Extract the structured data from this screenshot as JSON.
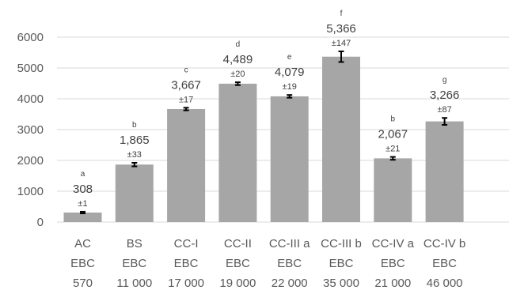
{
  "chart_data": {
    "type": "bar",
    "categories": [
      [
        "AC",
        "EBC",
        "570"
      ],
      [
        "BS",
        "EBC",
        "11 000"
      ],
      [
        "CC-I",
        "EBC",
        "17 000"
      ],
      [
        "CC-II",
        "EBC",
        "19 000"
      ],
      [
        "CC-III a",
        "EBC",
        "22 000"
      ],
      [
        "CC-III b",
        "EBC",
        "35 000"
      ],
      [
        "CC-IV a",
        "EBC",
        "21 000"
      ],
      [
        "CC-IV b",
        "EBC",
        "46 000"
      ]
    ],
    "values": [
      308,
      1865,
      3667,
      4489,
      4079,
      5366,
      2067,
      3266
    ],
    "errors": [
      1,
      33,
      17,
      20,
      19,
      147,
      21,
      87
    ],
    "value_labels": [
      "308",
      "1,865",
      "3,667",
      "4,489",
      "4,079",
      "5,366",
      "2,067",
      "3,266"
    ],
    "error_labels": [
      "±1",
      "±33",
      "±17",
      "±20",
      "±19",
      "±147",
      "±21",
      "±87"
    ],
    "group_letters": [
      "a",
      "b",
      "c",
      "d",
      "e",
      "f",
      "b",
      "g"
    ],
    "ylim": [
      0,
      6000
    ],
    "yticks": [
      0,
      1000,
      2000,
      3000,
      4000,
      5000,
      6000
    ],
    "ytick_labels": [
      "0",
      "1000",
      "2000",
      "3000",
      "4000",
      "5000",
      "6000"
    ],
    "grid": true,
    "colors": {
      "bar": "#a6a6a6",
      "grid": "#d9d9d9",
      "axis_text": "#595959",
      "error_bar": "#000000"
    }
  }
}
